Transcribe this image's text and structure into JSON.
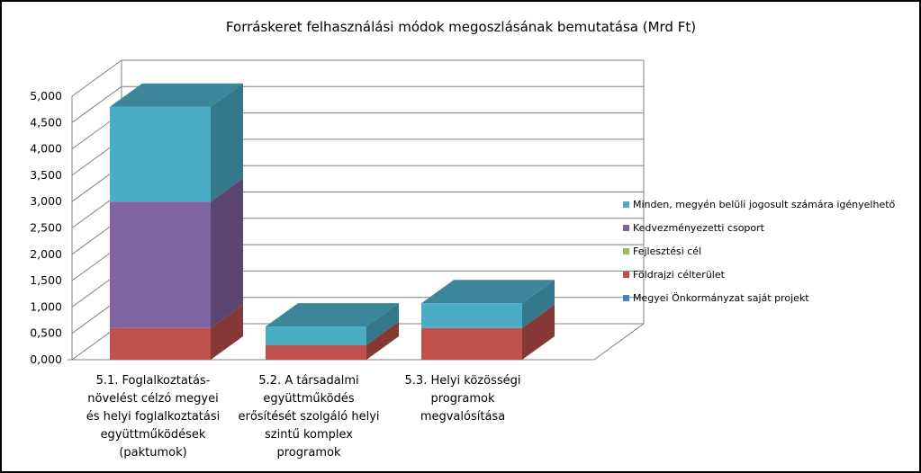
{
  "chart_data": {
    "type": "bar",
    "stacked": true,
    "three_d": true,
    "title": "Forráskeret felhasználási módok megoszlásának bemutatása (Mrd Ft)",
    "categories": [
      [
        "5.1. Foglalkoztatás-",
        "növelést célzó megyei",
        "és helyi foglalkoztatási",
        "együttműködések",
        "(paktumok)"
      ],
      [
        "5.2. A társadalmi",
        "együttműködés",
        "erősítését szolgáló helyi",
        "szintű komplex",
        "programok"
      ],
      [
        "5.3. Helyi közösségi",
        "programok",
        "megvalósítása"
      ]
    ],
    "series": [
      {
        "name": "Megyei Önkormányzat saját projekt",
        "color": "#4F81BD",
        "values": [
          0,
          0,
          0
        ]
      },
      {
        "name": "Földrajzi célterület",
        "color": "#C0504D",
        "values": [
          0.6,
          0.28,
          0.6
        ]
      },
      {
        "name": "Fejlesztési cél",
        "color": "#9BBB59",
        "values": [
          0,
          0,
          0
        ]
      },
      {
        "name": "Kedvezményezetti csoport",
        "color": "#8064A2",
        "values": [
          2.4,
          0,
          0
        ]
      },
      {
        "name": "Minden, megyén belüli jogosult számára igényelhető",
        "color": "#4BACC6",
        "values": [
          1.8,
          0.35,
          0.47
        ]
      }
    ],
    "yticks": [
      "0,000",
      "0,500",
      "1,000",
      "1,500",
      "2,000",
      "2,500",
      "3,000",
      "3,500",
      "4,000",
      "4,500",
      "5,000"
    ],
    "ylim": [
      0,
      5
    ],
    "grid": true,
    "legend_position": "right"
  }
}
